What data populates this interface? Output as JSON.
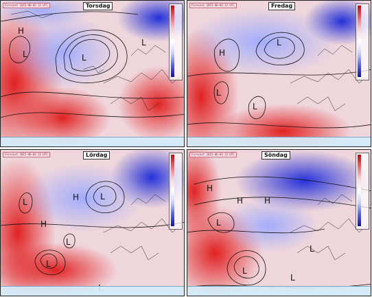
{
  "panels": [
    {
      "day": "Torsdag",
      "run_tag": "Forecast 2015-06-03 12 UTC"
    },
    {
      "day": "Fredag",
      "run_tag": "Forecast 2015-06-03 12 UTC"
    },
    {
      "day": "Lördag",
      "run_tag": "Forecast 2015-06-03 12 UTC"
    },
    {
      "day": "Söndag",
      "run_tag": "Forecast 2015-06-03 12 UTC"
    }
  ],
  "pressure_markers": {
    "high": "H",
    "low": "L"
  },
  "colors": {
    "warm": "#e02020",
    "cold": "#1a2ad8",
    "neutral": "#f2e6ea"
  }
}
